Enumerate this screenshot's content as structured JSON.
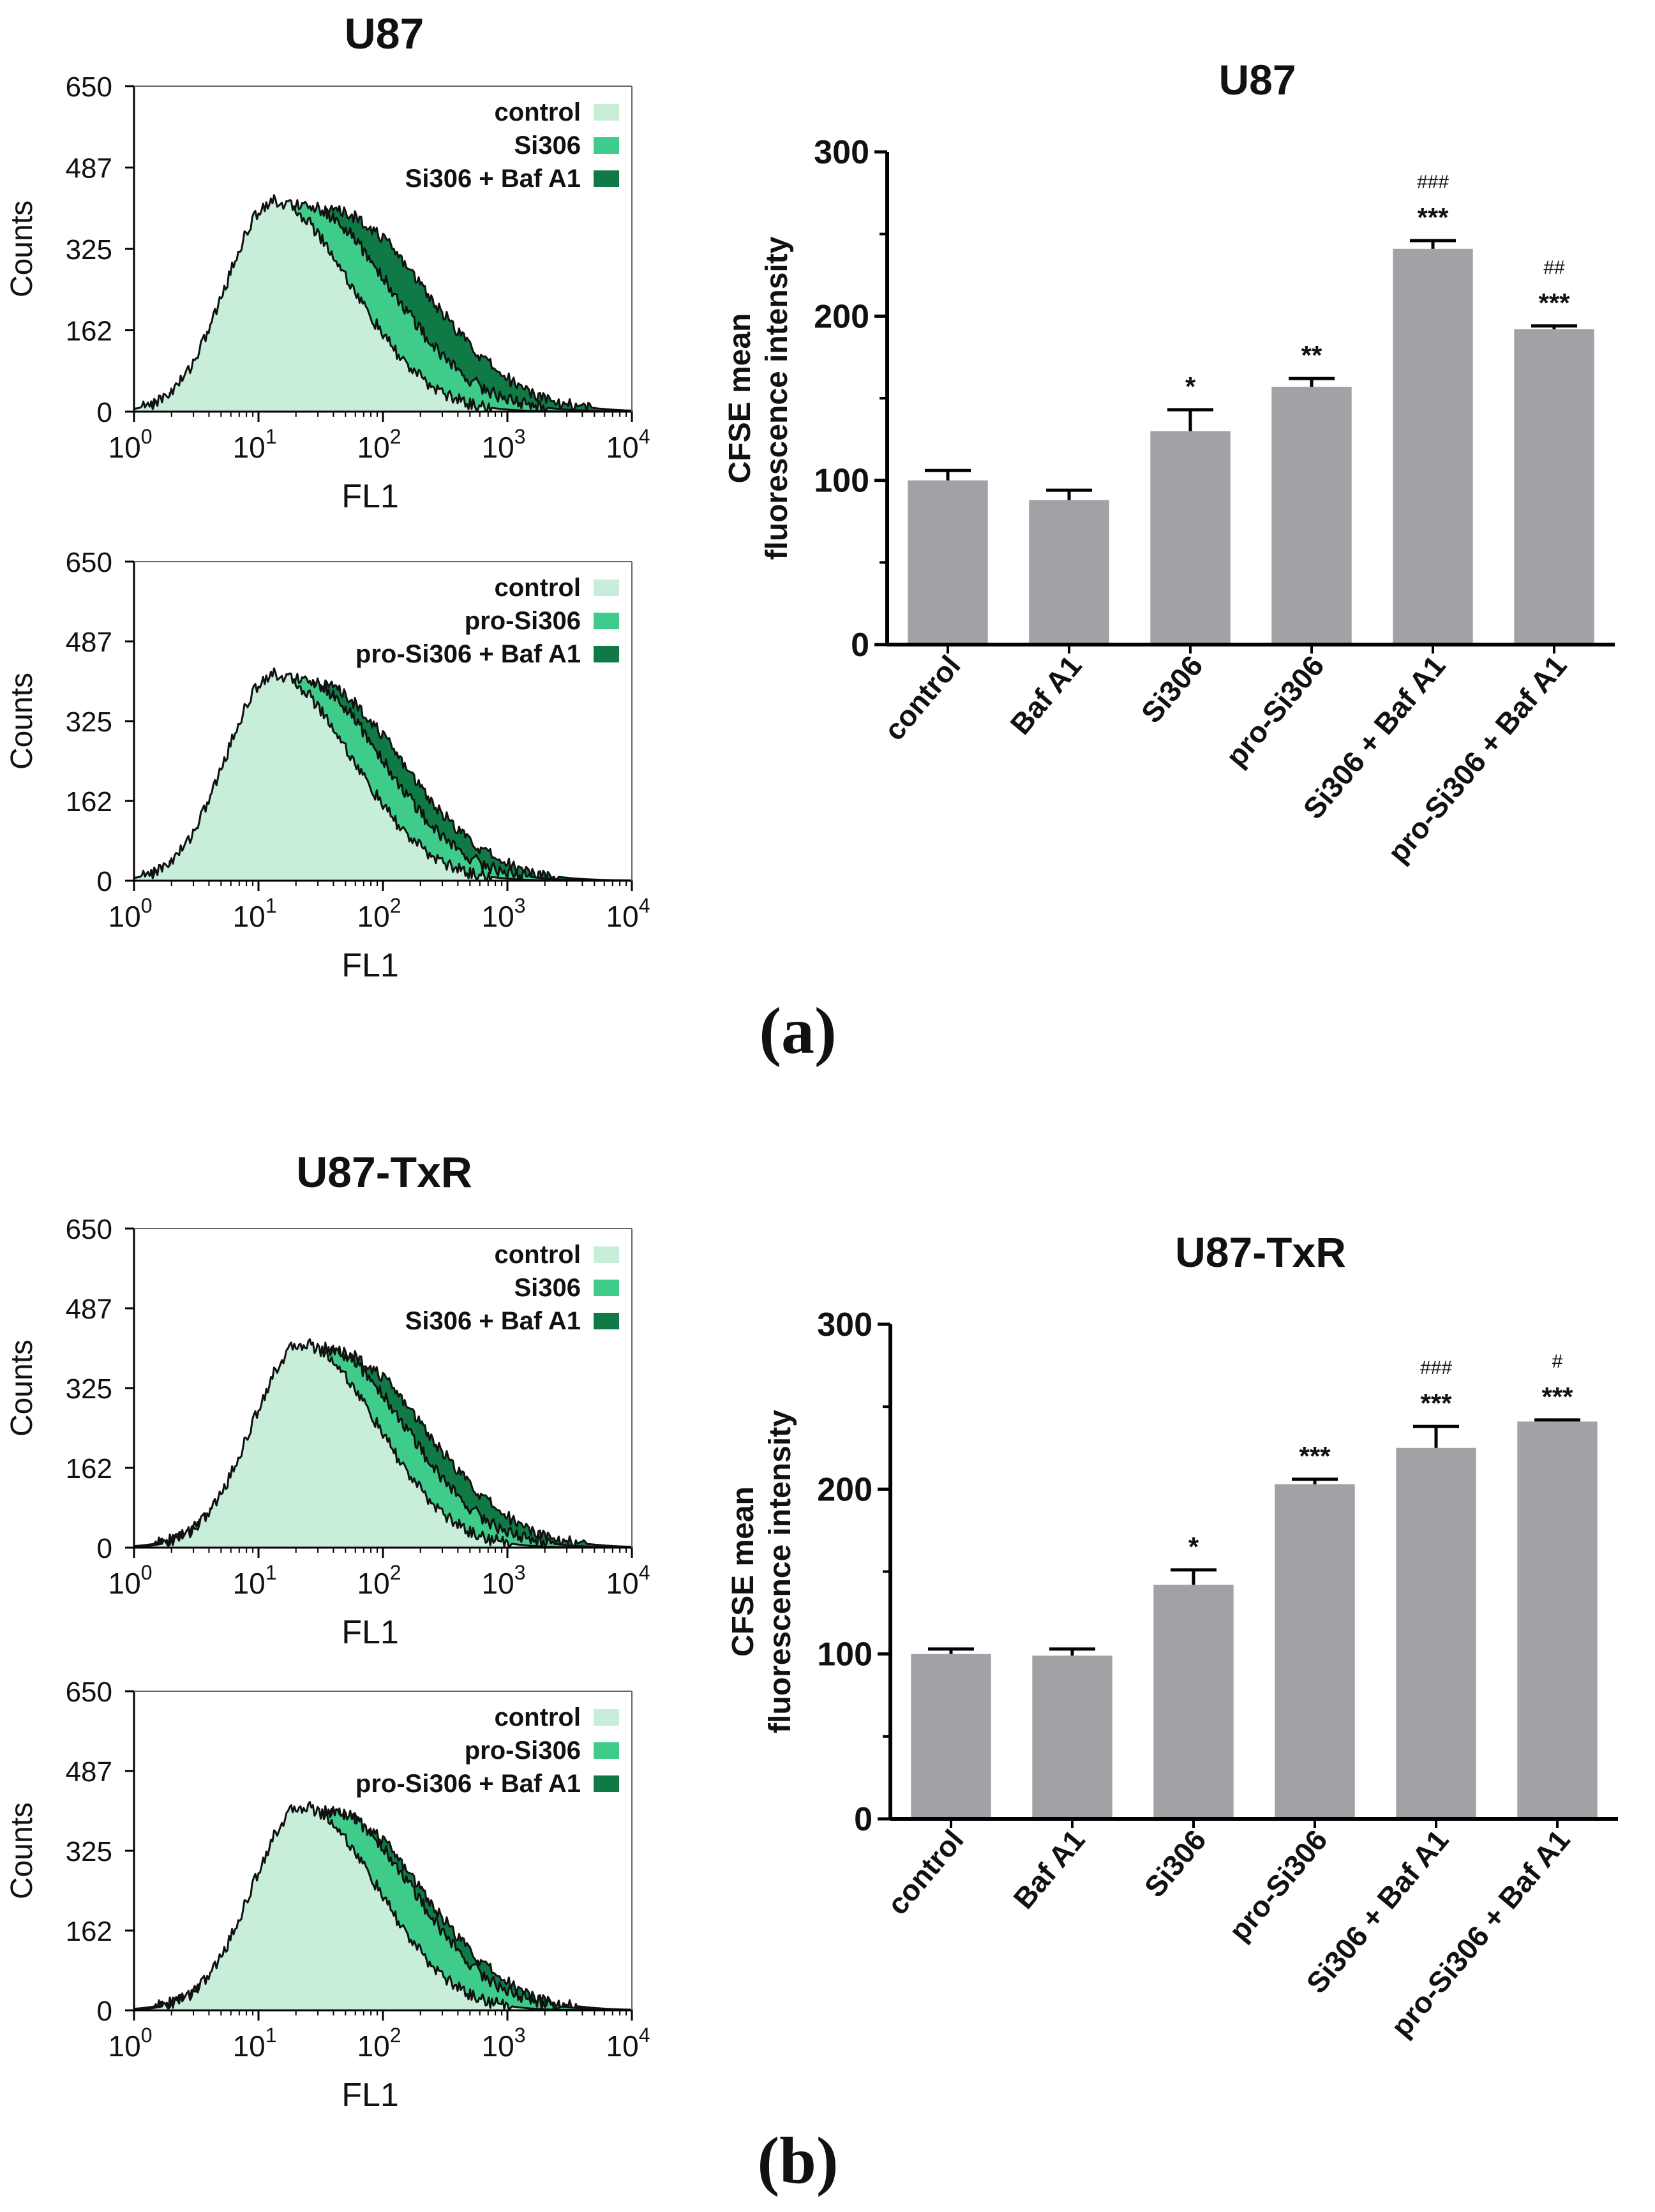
{
  "panels": [
    {
      "panel_label": "(a)",
      "histogram_title": "U87",
      "bar_chart_title": "U87"
    },
    {
      "panel_label": "(b)",
      "histogram_title": "U87-TxR",
      "bar_chart_title": "U87-TxR"
    }
  ],
  "colors": {
    "control_fill": "#c8eed9",
    "si306_fill": "#3fcc8a",
    "baf_fill": "#0f7a45",
    "bar_fill": "#a2a2a6",
    "outline": "#111111"
  },
  "chart_data": [
    {
      "id": "hist-a1",
      "type": "area",
      "title": "U87",
      "xlabel": "FL1",
      "ylabel": "Counts",
      "x_scale": "log",
      "xlim": [
        1,
        10000
      ],
      "x_ticks": [
        {
          "base": "10",
          "exp": "0"
        },
        {
          "base": "10",
          "exp": "1"
        },
        {
          "base": "10",
          "exp": "2"
        },
        {
          "base": "10",
          "exp": "3"
        },
        {
          "base": "10",
          "exp": "4"
        }
      ],
      "ylim": [
        0,
        650
      ],
      "y_ticks": [
        "0",
        "162",
        "325",
        "487",
        "650"
      ],
      "legend_position": "top-right",
      "series": [
        {
          "name": "control",
          "color": "#c8eed9",
          "peak_log10": 1.12,
          "peak_count": 420,
          "spread_left": 0.38,
          "spread_right": 0.62
        },
        {
          "name": "Si306",
          "color": "#3fcc8a",
          "peak_log10": 1.35,
          "peak_count": 412,
          "spread_left": 0.45,
          "spread_right": 0.7
        },
        {
          "name": "Si306 + Baf A1",
          "color": "#0f7a45",
          "peak_log10": 1.6,
          "peak_count": 400,
          "spread_left": 0.55,
          "spread_right": 0.74
        }
      ]
    },
    {
      "id": "hist-a2",
      "type": "area",
      "title": "",
      "xlabel": "FL1",
      "ylabel": "Counts",
      "x_scale": "log",
      "xlim": [
        1,
        10000
      ],
      "x_ticks": [
        {
          "base": "10",
          "exp": "0"
        },
        {
          "base": "10",
          "exp": "1"
        },
        {
          "base": "10",
          "exp": "2"
        },
        {
          "base": "10",
          "exp": "3"
        },
        {
          "base": "10",
          "exp": "4"
        }
      ],
      "ylim": [
        0,
        650
      ],
      "y_ticks": [
        "0",
        "162",
        "325",
        "487",
        "650"
      ],
      "legend_position": "top-right",
      "series": [
        {
          "name": "control",
          "color": "#c8eed9",
          "peak_log10": 1.12,
          "peak_count": 420,
          "spread_left": 0.38,
          "spread_right": 0.62
        },
        {
          "name": "pro-Si306",
          "color": "#3fcc8a",
          "peak_log10": 1.33,
          "peak_count": 410,
          "spread_left": 0.45,
          "spread_right": 0.66
        },
        {
          "name": "pro-Si306 + Baf A1",
          "color": "#0f7a45",
          "peak_log10": 1.45,
          "peak_count": 402,
          "spread_left": 0.5,
          "spread_right": 0.7
        }
      ]
    },
    {
      "id": "bar-a",
      "type": "bar",
      "title": "U87",
      "xlabel": "",
      "ylabel": [
        "CFSE mean",
        "fluorescence intensity"
      ],
      "ylim": [
        0,
        300
      ],
      "y_ticks": [
        "0",
        "100",
        "200",
        "300"
      ],
      "categories": [
        "control",
        "Baf A1",
        "Si306",
        "pro-Si306",
        "Si306 + Baf A1",
        "pro-Si306 + Baf A1"
      ],
      "values": [
        100,
        88,
        130,
        157,
        241,
        192
      ],
      "errors": [
        6,
        6,
        13,
        5,
        5,
        2
      ],
      "sig_star": [
        "",
        "",
        "*",
        "**",
        "***",
        "***"
      ],
      "sig_hash": [
        "",
        "",
        "",
        "",
        "###",
        "##"
      ]
    },
    {
      "id": "hist-b1",
      "type": "area",
      "title": "U87-TxR",
      "xlabel": "FL1",
      "ylabel": "Counts",
      "x_scale": "log",
      "xlim": [
        1,
        10000
      ],
      "x_ticks": [
        {
          "base": "10",
          "exp": "0"
        },
        {
          "base": "10",
          "exp": "1"
        },
        {
          "base": "10",
          "exp": "2"
        },
        {
          "base": "10",
          "exp": "3"
        },
        {
          "base": "10",
          "exp": "4"
        }
      ],
      "ylim": [
        0,
        650
      ],
      "y_ticks": [
        "0",
        "162",
        "325",
        "487",
        "650"
      ],
      "legend_position": "top-right",
      "series": [
        {
          "name": "control",
          "color": "#c8eed9",
          "peak_log10": 1.35,
          "peak_count": 415,
          "spread_left": 0.4,
          "spread_right": 0.6
        },
        {
          "name": "Si306",
          "color": "#3fcc8a",
          "peak_log10": 1.52,
          "peak_count": 405,
          "spread_left": 0.48,
          "spread_right": 0.66
        },
        {
          "name": "Si306 + Baf A1",
          "color": "#0f7a45",
          "peak_log10": 1.62,
          "peak_count": 398,
          "spread_left": 0.52,
          "spread_right": 0.72
        }
      ]
    },
    {
      "id": "hist-b2",
      "type": "area",
      "title": "",
      "xlabel": "FL1",
      "ylabel": "Counts",
      "x_scale": "log",
      "xlim": [
        1,
        10000
      ],
      "x_ticks": [
        {
          "base": "10",
          "exp": "0"
        },
        {
          "base": "10",
          "exp": "1"
        },
        {
          "base": "10",
          "exp": "2"
        },
        {
          "base": "10",
          "exp": "3"
        },
        {
          "base": "10",
          "exp": "4"
        }
      ],
      "ylim": [
        0,
        650
      ],
      "y_ticks": [
        "0",
        "162",
        "325",
        "487",
        "650"
      ],
      "legend_position": "top-right",
      "series": [
        {
          "name": "control",
          "color": "#c8eed9",
          "peak_log10": 1.35,
          "peak_count": 415,
          "spread_left": 0.4,
          "spread_right": 0.6
        },
        {
          "name": "pro-Si306",
          "color": "#3fcc8a",
          "peak_log10": 1.58,
          "peak_count": 405,
          "spread_left": 0.5,
          "spread_right": 0.66
        },
        {
          "name": "pro-Si306 + Baf A1",
          "color": "#0f7a45",
          "peak_log10": 1.62,
          "peak_count": 400,
          "spread_left": 0.52,
          "spread_right": 0.7
        }
      ]
    },
    {
      "id": "bar-b",
      "type": "bar",
      "title": "U87-TxR",
      "xlabel": "",
      "ylabel": [
        "CFSE mean",
        "fluorescence intensity"
      ],
      "ylim": [
        0,
        300
      ],
      "y_ticks": [
        "0",
        "100",
        "200",
        "300"
      ],
      "categories": [
        "control",
        "Baf A1",
        "Si306",
        "pro-Si306",
        "Si306 + Baf A1",
        "pro-Si306 + Baf A1"
      ],
      "values": [
        100,
        99,
        142,
        203,
        225,
        241
      ],
      "errors": [
        3,
        4,
        9,
        3,
        13,
        1
      ],
      "sig_star": [
        "",
        "",
        "*",
        "***",
        "***",
        "***"
      ],
      "sig_hash": [
        "",
        "",
        "",
        "",
        "###",
        "#"
      ]
    }
  ]
}
